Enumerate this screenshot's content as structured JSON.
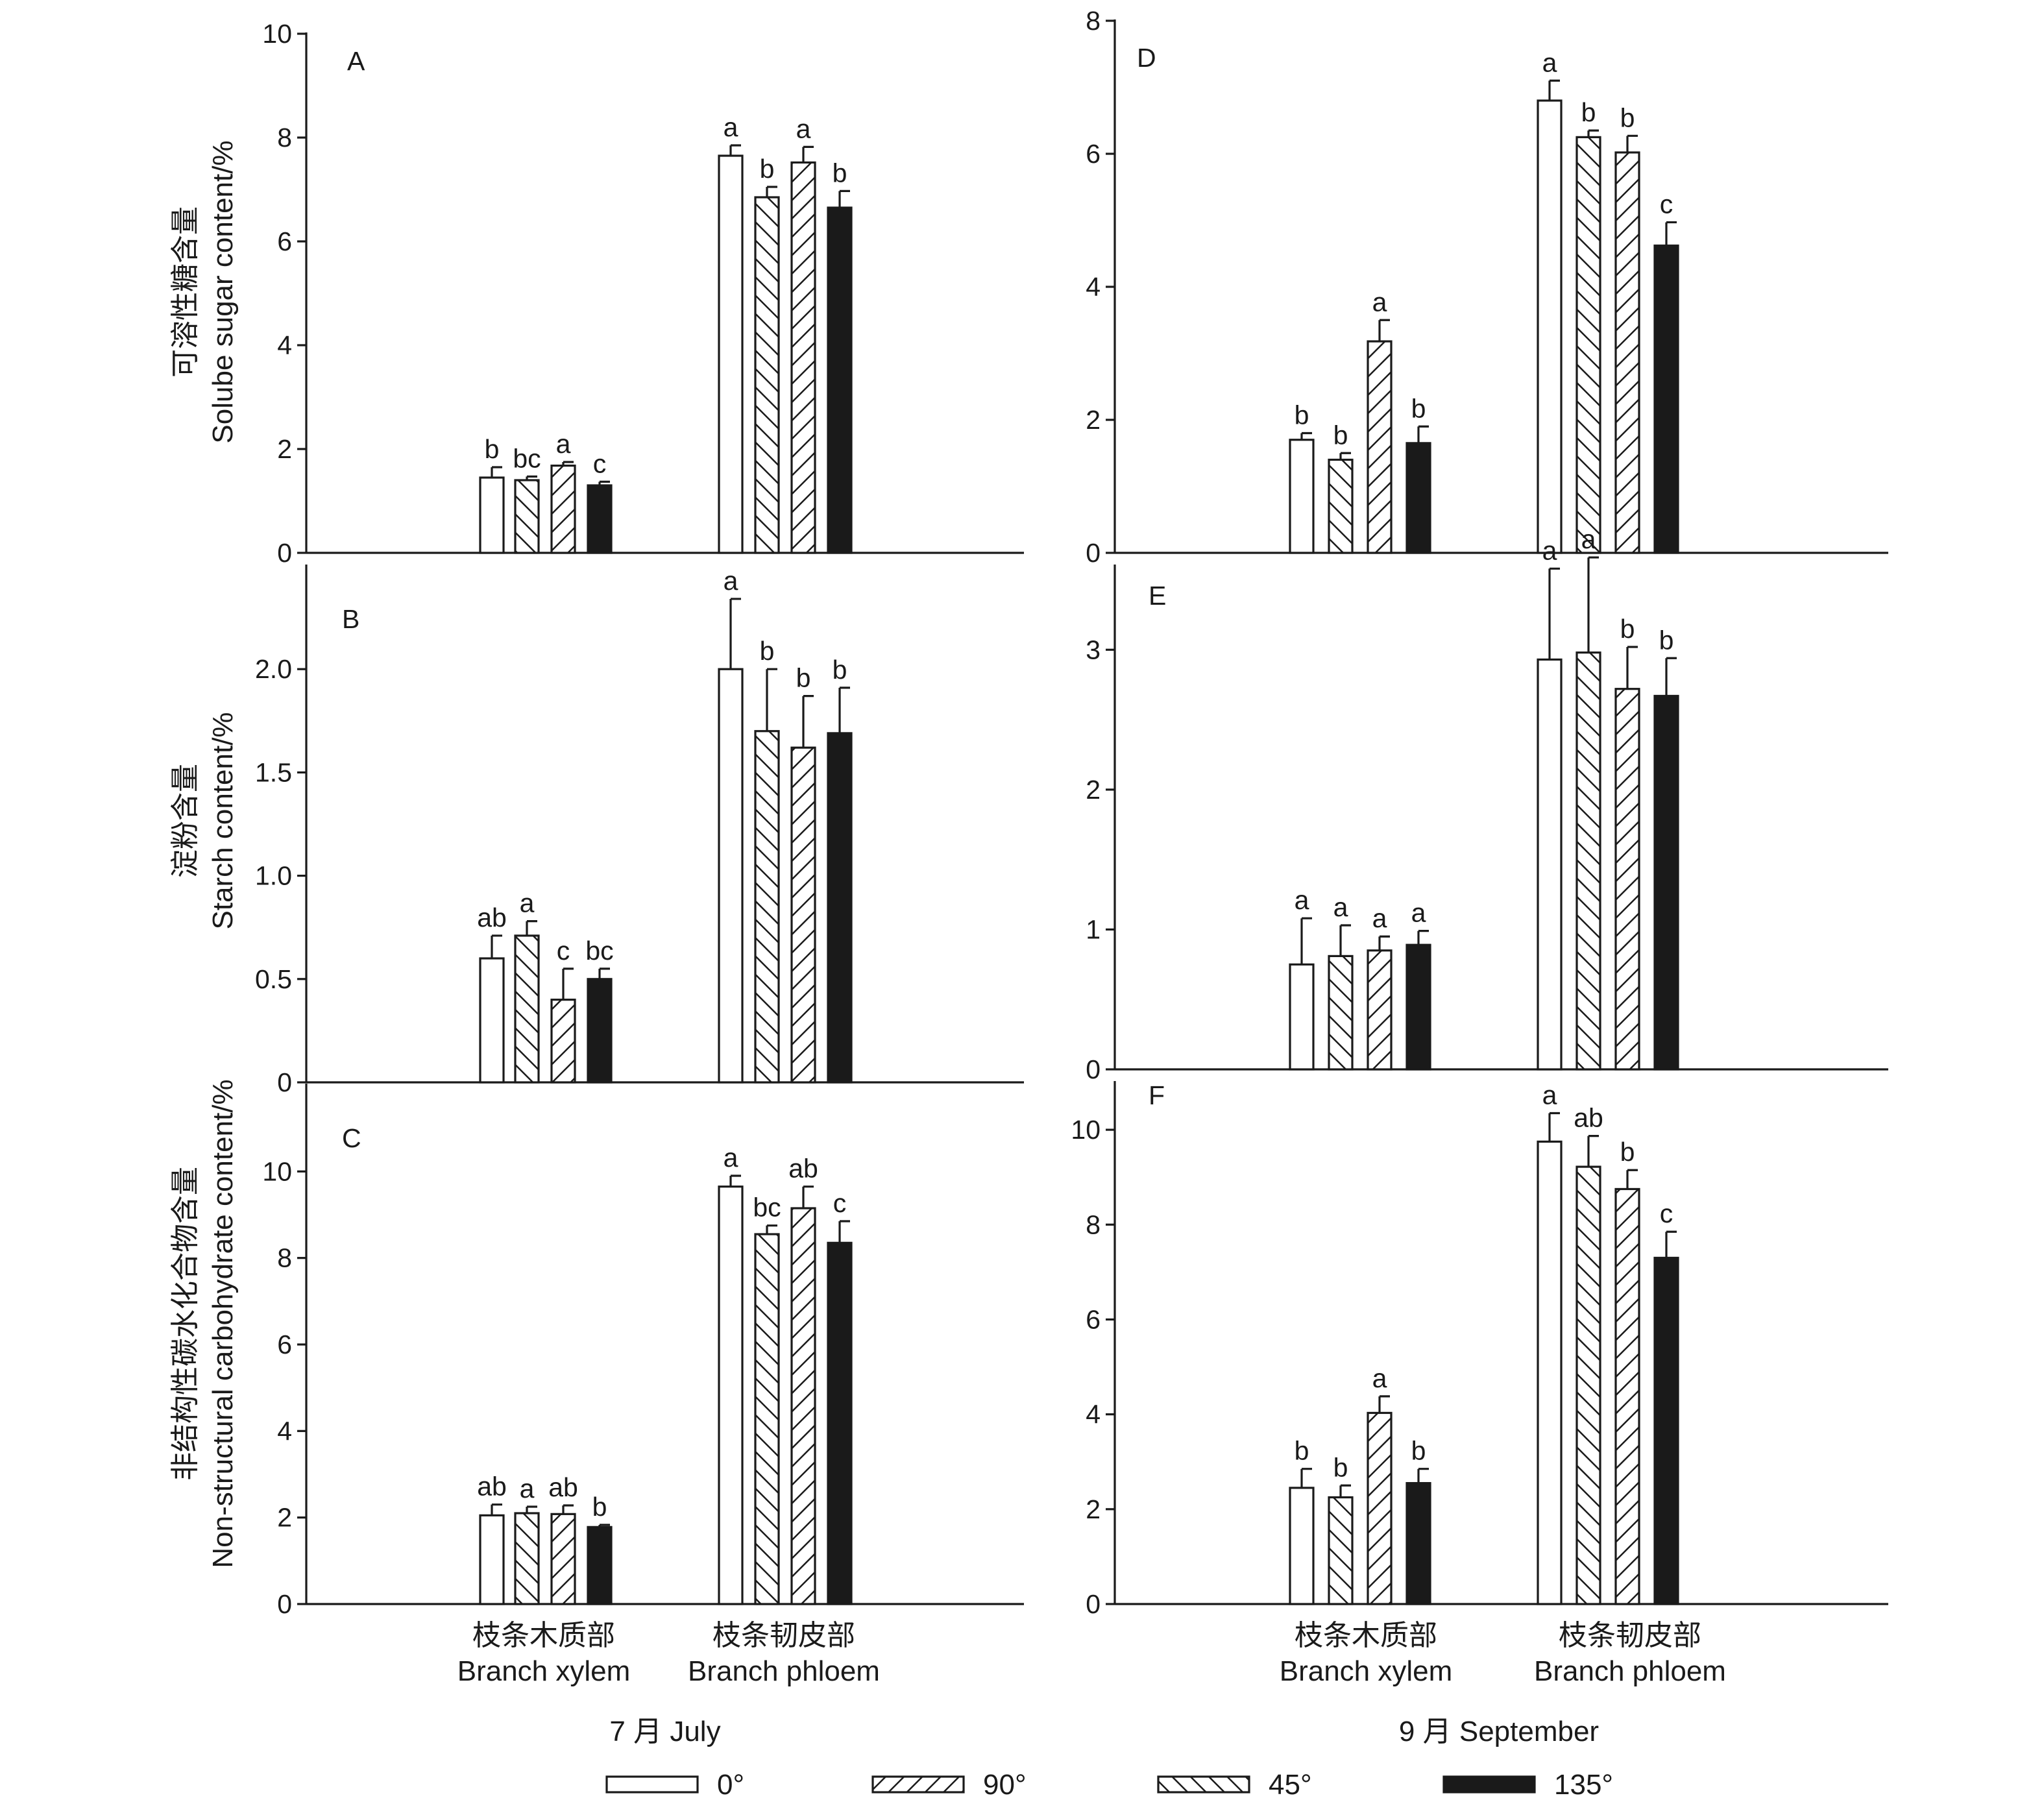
{
  "chart_data": [
    {
      "panel": "A",
      "type": "bar",
      "ylabel_cn": "可溶性糖含量",
      "ylabel_en": "Solube sugar content/%",
      "ylim": [
        0,
        10
      ],
      "yticks": [
        "0",
        "2",
        "4",
        "6",
        "8",
        "10"
      ],
      "categories": [
        "Branch xylem",
        "Branch phloem"
      ],
      "series": [
        {
          "name": "0°",
          "values": [
            1.45,
            7.65
          ],
          "errors": [
            0.2,
            0.2
          ],
          "letters": [
            "b",
            "a"
          ]
        },
        {
          "name": "45°",
          "values": [
            1.4,
            6.85
          ],
          "errors": [
            0.07,
            0.2
          ],
          "letters": [
            "bc",
            "b"
          ]
        },
        {
          "name": "90°",
          "values": [
            1.68,
            7.52
          ],
          "errors": [
            0.07,
            0.3
          ],
          "letters": [
            "a",
            "a"
          ]
        },
        {
          "name": "135°",
          "values": [
            1.3,
            6.65
          ],
          "errors": [
            0.07,
            0.32
          ],
          "letters": [
            "c",
            "b"
          ]
        }
      ]
    },
    {
      "panel": "B",
      "type": "bar",
      "ylabel_cn": "淀粉含量",
      "ylabel_en": "Starch content/%",
      "ylim": [
        0,
        2.5
      ],
      "yticks": [
        "0",
        "0.5",
        "1.0",
        "1.5",
        "2.0"
      ],
      "categories": [
        "Branch xylem",
        "Branch phloem"
      ],
      "series": [
        {
          "name": "0°",
          "values": [
            0.6,
            2.0
          ],
          "errors": [
            0.11,
            0.34
          ],
          "letters": [
            "ab",
            "a"
          ]
        },
        {
          "name": "45°",
          "values": [
            0.71,
            1.7
          ],
          "errors": [
            0.07,
            0.3
          ],
          "letters": [
            "a",
            "b"
          ]
        },
        {
          "name": "90°",
          "values": [
            0.4,
            1.62
          ],
          "errors": [
            0.15,
            0.25
          ],
          "letters": [
            "c",
            "b"
          ]
        },
        {
          "name": "135°",
          "values": [
            0.5,
            1.69
          ],
          "errors": [
            0.05,
            0.22
          ],
          "letters": [
            "bc",
            "b"
          ]
        }
      ]
    },
    {
      "panel": "C",
      "type": "bar",
      "ylabel_cn": "非结构性碳水化合物含量",
      "ylabel_en": "Non-structural carbohydrate content/%",
      "ylim": [
        0,
        12
      ],
      "yticks": [
        "0",
        "2",
        "4",
        "6",
        "8",
        "10"
      ],
      "categories": [
        "Branch xylem",
        "Branch phloem"
      ],
      "series": [
        {
          "name": "0°",
          "values": [
            2.05,
            9.65
          ],
          "errors": [
            0.25,
            0.25
          ],
          "letters": [
            "ab",
            "a"
          ]
        },
        {
          "name": "45°",
          "values": [
            2.1,
            8.55
          ],
          "errors": [
            0.15,
            0.2
          ],
          "letters": [
            "a",
            "bc"
          ]
        },
        {
          "name": "90°",
          "values": [
            2.08,
            9.15
          ],
          "errors": [
            0.2,
            0.5
          ],
          "letters": [
            "ab",
            "ab"
          ]
        },
        {
          "name": "135°",
          "values": [
            1.78,
            8.35
          ],
          "errors": [
            0.05,
            0.5
          ],
          "letters": [
            "b",
            "c"
          ]
        }
      ]
    },
    {
      "panel": "D",
      "type": "bar",
      "ylim": [
        0,
        8
      ],
      "yticks": [
        "0",
        "2",
        "4",
        "6",
        "8"
      ],
      "categories": [
        "Branch xylem",
        "Branch phloem"
      ],
      "series": [
        {
          "name": "0°",
          "values": [
            1.7,
            6.8
          ],
          "errors": [
            0.1,
            0.3
          ],
          "letters": [
            "b",
            "a"
          ]
        },
        {
          "name": "45°",
          "values": [
            1.4,
            6.25
          ],
          "errors": [
            0.1,
            0.1
          ],
          "letters": [
            "b",
            "b"
          ]
        },
        {
          "name": "90°",
          "values": [
            3.18,
            6.02
          ],
          "errors": [
            0.32,
            0.25
          ],
          "letters": [
            "a",
            "b"
          ]
        },
        {
          "name": "135°",
          "values": [
            1.65,
            4.62
          ],
          "errors": [
            0.25,
            0.35
          ],
          "letters": [
            "b",
            "c"
          ]
        }
      ]
    },
    {
      "panel": "E",
      "type": "bar",
      "ylim": [
        0,
        3.6
      ],
      "yticks": [
        "0",
        "1",
        "2",
        "3"
      ],
      "categories": [
        "Branch xylem",
        "Branch phloem"
      ],
      "series": [
        {
          "name": "0°",
          "values": [
            0.75,
            2.93
          ],
          "errors": [
            0.33,
            0.65
          ],
          "letters": [
            "a",
            "a"
          ]
        },
        {
          "name": "45°",
          "values": [
            0.81,
            2.98
          ],
          "errors": [
            0.22,
            0.68
          ],
          "letters": [
            "a",
            "a"
          ]
        },
        {
          "name": "90°",
          "values": [
            0.85,
            2.72
          ],
          "errors": [
            0.1,
            0.3
          ],
          "letters": [
            "a",
            "b"
          ]
        },
        {
          "name": "135°",
          "values": [
            0.89,
            2.67
          ],
          "errors": [
            0.1,
            0.27
          ],
          "letters": [
            "a",
            "b"
          ]
        }
      ]
    },
    {
      "panel": "F",
      "type": "bar",
      "ylim": [
        0,
        11
      ],
      "yticks": [
        "0",
        "2",
        "4",
        "6",
        "8",
        "10"
      ],
      "categories": [
        "Branch xylem",
        "Branch phloem"
      ],
      "series": [
        {
          "name": "0°",
          "values": [
            2.45,
            9.75
          ],
          "errors": [
            0.4,
            0.6
          ],
          "letters": [
            "b",
            "a"
          ]
        },
        {
          "name": "45°",
          "values": [
            2.25,
            9.22
          ],
          "errors": [
            0.25,
            0.65
          ],
          "letters": [
            "b",
            "ab"
          ]
        },
        {
          "name": "90°",
          "values": [
            4.03,
            8.75
          ],
          "errors": [
            0.35,
            0.4
          ],
          "letters": [
            "a",
            "b"
          ]
        },
        {
          "name": "135°",
          "values": [
            2.55,
            7.3
          ],
          "errors": [
            0.3,
            0.55
          ],
          "letters": [
            "b",
            "c"
          ]
        }
      ]
    }
  ],
  "category_labels": [
    {
      "cn": "枝条木质部",
      "en": "Branch xylem"
    },
    {
      "cn": "枝条韧皮部",
      "en": "Branch phloem"
    }
  ],
  "groups": {
    "left_label": "7 月  July",
    "right_label": "9 月  September"
  },
  "legend": [
    {
      "label": "0°",
      "pattern": "open"
    },
    {
      "label": "90°",
      "pattern": "hatch-forward"
    },
    {
      "label": "45°",
      "pattern": "hatch-back"
    },
    {
      "label": "135°",
      "pattern": "solid"
    }
  ],
  "colors": {
    "ink": "#1a1a1a",
    "background": "#ffffff"
  }
}
